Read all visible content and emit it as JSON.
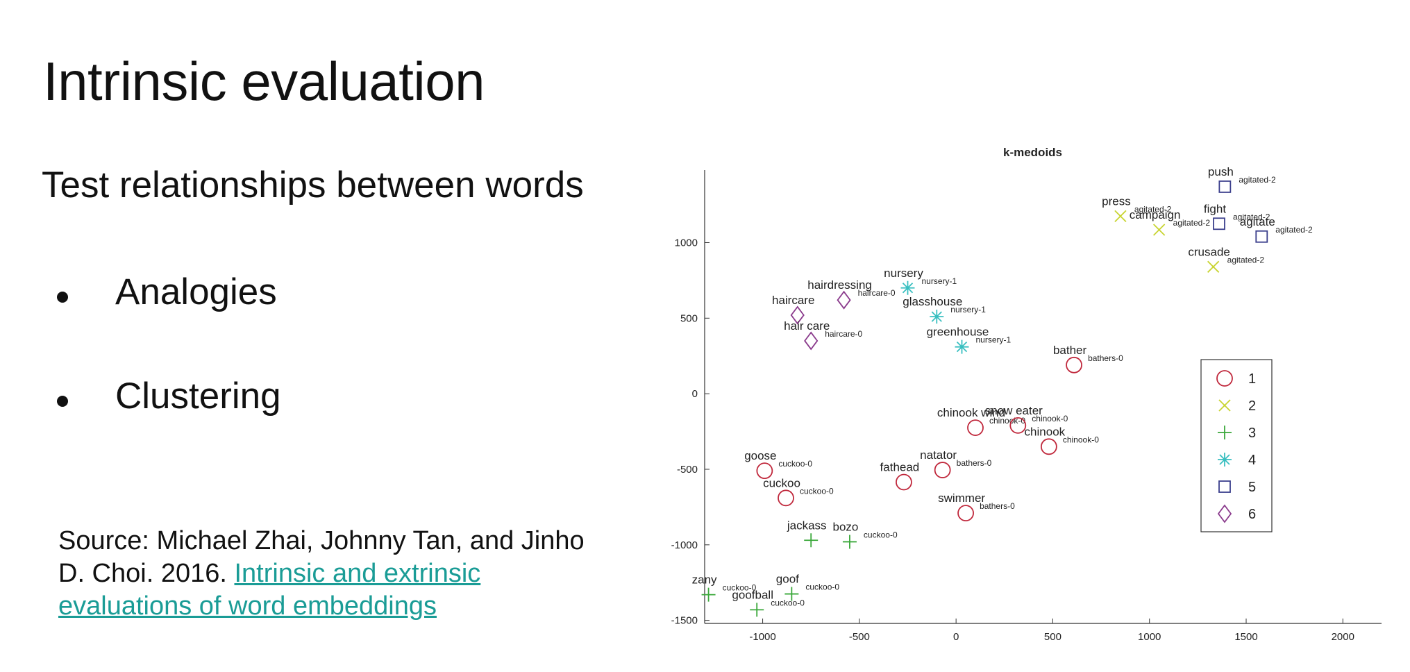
{
  "slide": {
    "title": "Intrinsic evaluation",
    "subtitle": "Test relationships between words",
    "bullets": [
      "Analogies",
      "Clustering"
    ],
    "source_prefix": "Source: Michael Zhai, Johnny Tan, and Jinho D. Choi. 2016.",
    "source_link": "Intrinsic and extrinsic evaluations of word embeddings"
  },
  "chart_data": {
    "type": "scatter",
    "title": "k-medoids",
    "xlabel": "",
    "ylabel": "",
    "xlim": [
      -1300,
      2200
    ],
    "ylim": [
      -1520,
      1480
    ],
    "xticks": [
      -1000,
      -500,
      0,
      500,
      1000,
      1500,
      2000
    ],
    "yticks": [
      -1500,
      -1000,
      -500,
      0,
      500,
      1000
    ],
    "grid": false,
    "legend_position": "right",
    "series": [
      {
        "name": "1",
        "marker": "circle",
        "color": "#c0283c",
        "points": [
          {
            "x": 610,
            "y": 190,
            "word": "bather",
            "cluster": "bathers-0"
          },
          {
            "x": 100,
            "y": -225,
            "word": "chinook wind",
            "cluster": "chinook-0"
          },
          {
            "x": 320,
            "y": -210,
            "word": "snow eater",
            "cluster": "chinook-0"
          },
          {
            "x": 480,
            "y": -350,
            "word": "chinook",
            "cluster": "chinook-0"
          },
          {
            "x": -270,
            "y": -585,
            "word": "fathead",
            "cluster": ""
          },
          {
            "x": -70,
            "y": -505,
            "word": "natator",
            "cluster": "bathers-0"
          },
          {
            "x": 50,
            "y": -790,
            "word": "swimmer",
            "cluster": "bathers-0"
          },
          {
            "x": -990,
            "y": -510,
            "word": "goose",
            "cluster": "cuckoo-0"
          },
          {
            "x": -880,
            "y": -690,
            "word": "cuckoo",
            "cluster": "cuckoo-0"
          }
        ]
      },
      {
        "name": "2",
        "marker": "x",
        "color": "#c8d430",
        "points": [
          {
            "x": 850,
            "y": 1175,
            "word": "press",
            "cluster": "agitated-2"
          },
          {
            "x": 1050,
            "y": 1085,
            "word": "campaign",
            "cluster": "agitated-2"
          },
          {
            "x": 1330,
            "y": 840,
            "word": "crusade",
            "cluster": "agitated-2"
          }
        ]
      },
      {
        "name": "3",
        "marker": "plus",
        "color": "#3aa83a",
        "points": [
          {
            "x": -750,
            "y": -970,
            "word": "jackass",
            "cluster": ""
          },
          {
            "x": -550,
            "y": -980,
            "word": "bozo",
            "cluster": "cuckoo-0"
          },
          {
            "x": -1280,
            "y": -1330,
            "word": "zany",
            "cluster": "cuckoo-0"
          },
          {
            "x": -850,
            "y": -1325,
            "word": "goof",
            "cluster": "cuckoo-0"
          },
          {
            "x": -1030,
            "y": -1430,
            "word": "goofball",
            "cluster": "cuckoo-0"
          }
        ]
      },
      {
        "name": "4",
        "marker": "asterisk",
        "color": "#38bfc0",
        "points": [
          {
            "x": -250,
            "y": 700,
            "word": "nursery",
            "cluster": "nursery-1"
          },
          {
            "x": -100,
            "y": 510,
            "word": "glasshouse",
            "cluster": "nursery-1"
          },
          {
            "x": 30,
            "y": 310,
            "word": "greenhouse",
            "cluster": "nursery-1"
          }
        ]
      },
      {
        "name": "5",
        "marker": "square",
        "color": "#3b3f8c",
        "points": [
          {
            "x": 1390,
            "y": 1370,
            "word": "push",
            "cluster": "agitated-2"
          },
          {
            "x": 1360,
            "y": 1125,
            "word": "fight",
            "cluster": "agitated-2"
          },
          {
            "x": 1580,
            "y": 1040,
            "word": "agitate",
            "cluster": "agitated-2"
          }
        ]
      },
      {
        "name": "6",
        "marker": "diamond",
        "color": "#8a3a8c",
        "points": [
          {
            "x": -580,
            "y": 620,
            "word": "hairdressing",
            "cluster": "haircare-0"
          },
          {
            "x": -820,
            "y": 520,
            "word": "haircare",
            "cluster": ""
          },
          {
            "x": -750,
            "y": 350,
            "word": "hair care",
            "cluster": "haircare-0"
          }
        ]
      }
    ]
  }
}
